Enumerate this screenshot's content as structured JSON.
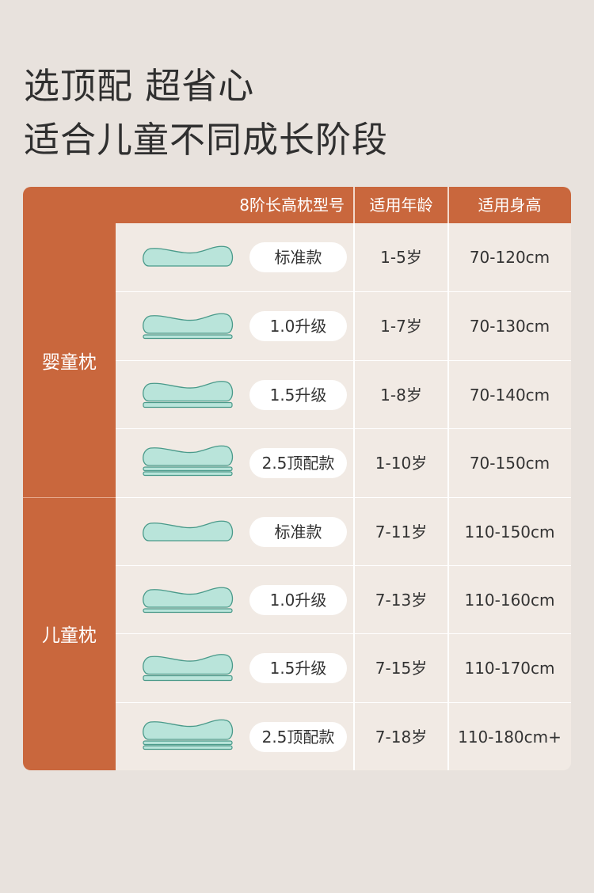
{
  "title_line1": "选顶配 超省心",
  "title_line2": "适合儿童不同成长阶段",
  "header": {
    "model": "8阶长高枕型号",
    "age": "适用年龄",
    "height": "适用身高"
  },
  "colors": {
    "accent": "#c9673d",
    "pillow_fill": "#b9e4da",
    "pillow_stroke": "#4a9a8a",
    "cell_bg": "#f1eae4",
    "page_bg": "#e8e2dd"
  },
  "groups": [
    {
      "label": "婴童枕",
      "rows": [
        {
          "model": "标准款",
          "layers": 0,
          "age": "1-5岁",
          "height": "70-120cm"
        },
        {
          "model": "1.0升级",
          "layers": 1,
          "age": "1-7岁",
          "height": "70-130cm"
        },
        {
          "model": "1.5升级",
          "layers": 1.5,
          "age": "1-8岁",
          "height": "70-140cm"
        },
        {
          "model": "2.5顶配款",
          "layers": 2,
          "age": "1-10岁",
          "height": "70-150cm"
        }
      ]
    },
    {
      "label": "儿童枕",
      "rows": [
        {
          "model": "标准款",
          "layers": 0,
          "age": "7-11岁",
          "height": "110-150cm"
        },
        {
          "model": "1.0升级",
          "layers": 1,
          "age": "7-13岁",
          "height": "110-160cm"
        },
        {
          "model": "1.5升级",
          "layers": 1.5,
          "age": "7-15岁",
          "height": "110-170cm"
        },
        {
          "model": "2.5顶配款",
          "layers": 2,
          "age": "7-18岁",
          "height": "110-180cm+"
        }
      ]
    }
  ]
}
